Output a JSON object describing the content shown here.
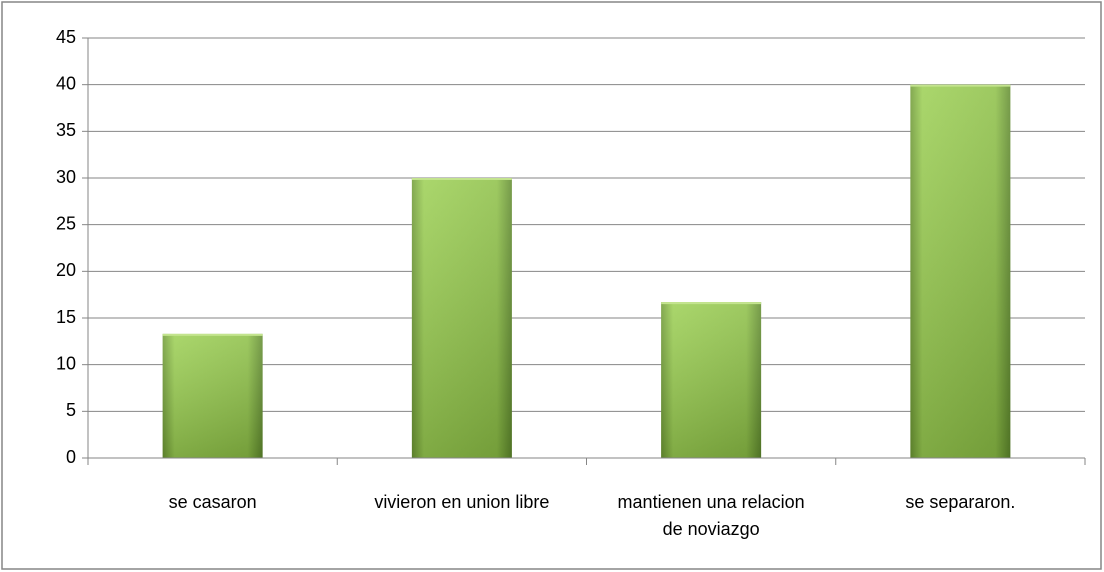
{
  "chart_data": {
    "type": "bar",
    "categories": [
      "se casaron",
      "vivieron en union libre",
      "mantienen una relacion de noviazgo",
      "se separaron."
    ],
    "values": [
      13.3,
      30,
      16.7,
      40
    ],
    "color": "#8cbf45",
    "ylim": [
      0,
      45
    ],
    "yticks": [
      0,
      5,
      10,
      15,
      20,
      25,
      30,
      35,
      40,
      45
    ],
    "grid": true
  }
}
